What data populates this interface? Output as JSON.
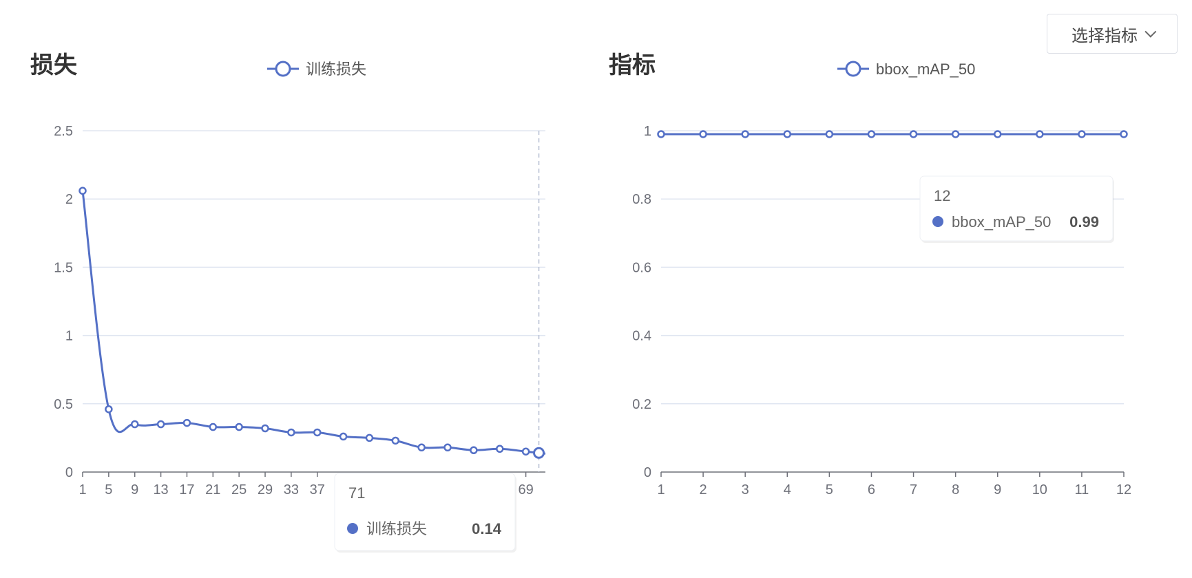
{
  "select_metric": {
    "label": "选择指标"
  },
  "colors": {
    "series": "#5470c6",
    "grid": "#e0e6f1",
    "axis": "#6e7079"
  },
  "chart_data": [
    {
      "type": "line",
      "title": "损失",
      "series": [
        {
          "name": "训练损失",
          "x": [
            1,
            5,
            9,
            13,
            17,
            21,
            25,
            29,
            33,
            37,
            41,
            45,
            49,
            53,
            57,
            61,
            65,
            69,
            71
          ],
          "values": [
            2.06,
            0.46,
            0.35,
            0.35,
            0.36,
            0.33,
            0.33,
            0.32,
            0.29,
            0.29,
            0.26,
            0.25,
            0.23,
            0.18,
            0.18,
            0.16,
            0.17,
            0.15,
            0.14
          ]
        }
      ],
      "xlim": [
        1,
        72
      ],
      "ylim": [
        0,
        2.5
      ],
      "y_ticks": [
        "0",
        "0.5",
        "1",
        "1.5",
        "2",
        "2.5"
      ],
      "x_ticks": [
        "1",
        "5",
        "9",
        "13",
        "17",
        "21",
        "25",
        "29",
        "33",
        "37",
        "69"
      ],
      "grid": true,
      "legend": "top",
      "tooltip": {
        "title": "71",
        "name": "训练损失",
        "value": "0.14"
      }
    },
    {
      "type": "line",
      "title": "指标",
      "series": [
        {
          "name": "bbox_mAP_50",
          "x": [
            1,
            2,
            3,
            4,
            5,
            6,
            7,
            8,
            9,
            10,
            11,
            12
          ],
          "values": [
            0.99,
            0.99,
            0.99,
            0.99,
            0.99,
            0.99,
            0.99,
            0.99,
            0.99,
            0.99,
            0.99,
            0.99
          ]
        }
      ],
      "xlim": [
        1,
        12
      ],
      "ylim": [
        0,
        1
      ],
      "y_ticks": [
        "0",
        "0.2",
        "0.4",
        "0.6",
        "0.8",
        "1"
      ],
      "x_ticks": [
        "1",
        "2",
        "3",
        "4",
        "5",
        "6",
        "7",
        "8",
        "9",
        "10",
        "11",
        "12"
      ],
      "grid": true,
      "legend": "top",
      "tooltip": {
        "title": "12",
        "name": "bbox_mAP_50",
        "value": "0.99"
      }
    }
  ]
}
